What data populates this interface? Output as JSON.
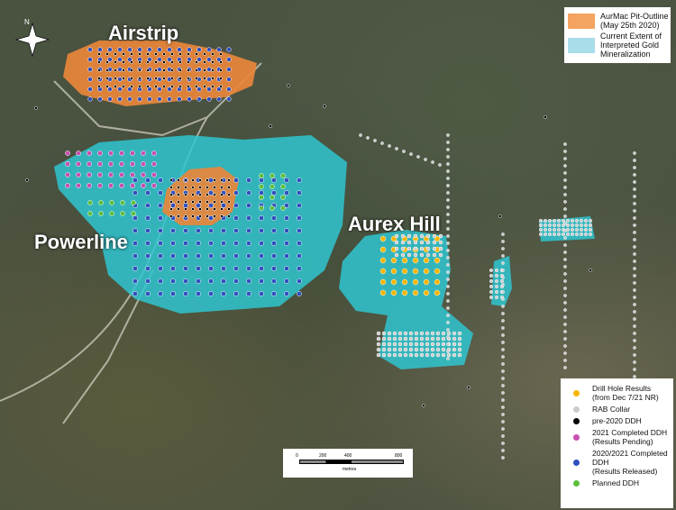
{
  "labels": {
    "airstrip": "Airstrip",
    "powerline": "Powerline",
    "aurex": "Aurex Hill"
  },
  "north": "N",
  "legend_top": [
    {
      "label": "AurMac Pit-Outline (May 25th 2020)",
      "color": "#f4a460"
    },
    {
      "label": "Current Extent of Interpreted Gold Mineralization",
      "color": "#a8dde9"
    }
  ],
  "legend_bottom": [
    {
      "label": "Drill Hole Results",
      "sub": "(from Dec 7/21 NR)",
      "color": "#f7b500"
    },
    {
      "label": "RAB Collar",
      "sub": "",
      "color": "#cccccc"
    },
    {
      "label": "pre-2020 DDH",
      "sub": "",
      "color": "#000000"
    },
    {
      "label": "2021 Completed DDH",
      "sub": "(Results Pending)",
      "color": "#c84fb0"
    },
    {
      "label": "2020/2021 Completed DDH",
      "sub": "(Results Released)",
      "color": "#2f4fbf"
    },
    {
      "label": "Planned DDH",
      "sub": "",
      "color": "#5cbf3a"
    }
  ],
  "scale": {
    "ticks": [
      "0",
      "200",
      "400",
      "800"
    ],
    "unit": "metres"
  },
  "colors": {
    "pit": "#e8873a",
    "mineral": "#2fc6d0"
  }
}
